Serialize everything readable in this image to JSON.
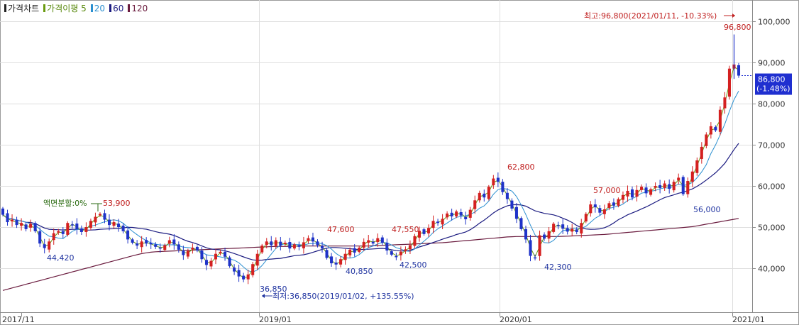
{
  "legend": [
    {
      "label": "가격차트",
      "color": "#222222"
    },
    {
      "label": "가격이평 5",
      "color": "#6a9a10"
    },
    {
      "label": "20",
      "color": "#2a8fd0"
    },
    {
      "label": "60",
      "color": "#1b1b80"
    },
    {
      "label": "120",
      "color": "#6a1b3e"
    }
  ],
  "colors": {
    "up": "#d42020",
    "down": "#1f33c8",
    "ma5": "#6a9a10",
    "ma20": "#2a8fd0",
    "ma60": "#1b1b80",
    "ma120": "#6a1b3e",
    "high_label": "#c02020",
    "low_label": "#1f33a0"
  },
  "chart_data": {
    "type": "candlestick",
    "x_ticks": [
      "2017/11",
      "2019/01",
      "2020/01",
      "2021/01"
    ],
    "y_ticks": [
      "100,000",
      "90,000",
      "80,000",
      "70,000",
      "60,000",
      "50,000",
      "40,000"
    ],
    "ylim": [
      30000,
      106000
    ],
    "current": {
      "price": "86,800",
      "change": "(-1.48%)",
      "value": 86800
    },
    "annotations": {
      "high": {
        "text": "최고:96,800(2021/01/11, -10.33%)",
        "value_label": "96,800",
        "value": 96800
      },
      "low": {
        "text": "최저:36,850(2019/01/02, +135.55%)",
        "value_label": "36,850",
        "value": 36850
      },
      "split": {
        "text": "액면분할:0%"
      },
      "peaks": [
        {
          "label": "53,900",
          "value": 53900
        },
        {
          "label": "44,420",
          "value": 44420
        },
        {
          "label": "47,600",
          "value": 47600
        },
        {
          "label": "40,850",
          "value": 40850
        },
        {
          "label": "47,550",
          "value": 47550
        },
        {
          "label": "42,500",
          "value": 42500
        },
        {
          "label": "62,800",
          "value": 62800
        },
        {
          "label": "42,300",
          "value": 42300
        },
        {
          "label": "57,000",
          "value": 57000
        },
        {
          "label": "56,000",
          "value": 56000
        }
      ]
    },
    "closes": [
      53000,
      51200,
      51800,
      50500,
      51000,
      49500,
      50800,
      49000,
      46000,
      44900,
      46500,
      48500,
      49000,
      48300,
      51000,
      50500,
      49500,
      48800,
      50000,
      51500,
      52500,
      53200,
      51800,
      50500,
      51200,
      50000,
      49000,
      47000,
      46200,
      45500,
      46500,
      46000,
      45800,
      45200,
      44800,
      45600,
      46800,
      45800,
      44500,
      43200,
      44200,
      45000,
      44300,
      42200,
      40800,
      41800,
      43500,
      44000,
      42800,
      40500,
      39200,
      38000,
      37300,
      38500,
      41000,
      43500,
      45500,
      46500,
      45600,
      46800,
      45500,
      46200,
      44800,
      45800,
      45200,
      46300,
      47300,
      46500,
      45600,
      44800,
      42500,
      41200,
      40900,
      42200,
      43500,
      44500,
      43800,
      45000,
      46400,
      46800,
      46000,
      47300,
      46200,
      44300,
      43300,
      42800,
      44000,
      44600,
      45600,
      47800,
      49100,
      48300,
      49800,
      51500,
      51000,
      52000,
      53300,
      52600,
      53800,
      52800,
      51900,
      54200,
      56500,
      58300,
      57200,
      59800,
      61800,
      61000,
      58500,
      56800,
      54500,
      52000,
      49500,
      47000,
      43000,
      42600,
      48000,
      47200,
      49000,
      50800,
      50300,
      49600,
      48900,
      49600,
      48800,
      51000,
      53200,
      55500,
      54800,
      53500,
      54300,
      55800,
      55200,
      56800,
      57800,
      58800,
      57200,
      59000,
      59800,
      58200,
      59200,
      60000,
      59500,
      60600,
      59300,
      61000,
      62000,
      58000,
      61200,
      63500,
      66200,
      69500,
      72500,
      74500,
      73500,
      78500,
      81500,
      88500,
      89500,
      86800
    ],
    "ma120": [
      34600,
      34900,
      35200,
      35500,
      35800,
      36100,
      36400,
      36700,
      37000,
      37300,
      37600,
      37900,
      38200,
      38500,
      38800,
      39100,
      39400,
      39700,
      40000,
      40300,
      40600,
      40900,
      41200,
      41500,
      41800,
      42100,
      42400,
      42700,
      43000,
      43300,
      43550,
      43750,
      43900,
      44000,
      44050,
      44100,
      44150,
      44200,
      44250,
      44300,
      44350,
      44400,
      44450,
      44500,
      44550,
      44600,
      44650,
      44700,
      44750,
      44800,
      44850,
      44900,
      44950,
      45000,
      45050,
      45100,
      45150,
      45200,
      45250,
      45300,
      45300,
      45300,
      45300,
      45350,
      45400,
      45400,
      45400,
      45400,
      45400,
      45400,
      45400,
      45400,
      45400,
      45400,
      45400,
      45400,
      45400,
      45400,
      45400,
      45400,
      45450,
      45500,
      45550,
      45600,
      45650,
      45700,
      45750,
      45800,
      45850,
      45900,
      45950,
      46000,
      46050,
      46100,
      46150,
      46200,
      46300,
      46400,
      46500,
      46600,
      46700,
      46800,
      46900,
      47000,
      47100,
      47200,
      47300,
      47400,
      47500,
      47600,
      47650,
      47700,
      47700,
      47700,
      47700,
      47700,
      47700,
      47700,
      47700,
      47700,
      47700,
      47750,
      47800,
      47850,
      47900,
      47950,
      48000,
      48050,
      48100,
      48150,
      48200,
      48300,
      48400,
      48500,
      48600,
      48700,
      48800,
      48900,
      49000,
      49100,
      49200,
      49300,
      49400,
      49500,
      49600,
      49700,
      49800,
      49900,
      50000,
      50100,
      50300,
      50500,
      50700,
      50900,
      51100,
      51300,
      51500,
      51700,
      51900,
      52100
    ]
  }
}
